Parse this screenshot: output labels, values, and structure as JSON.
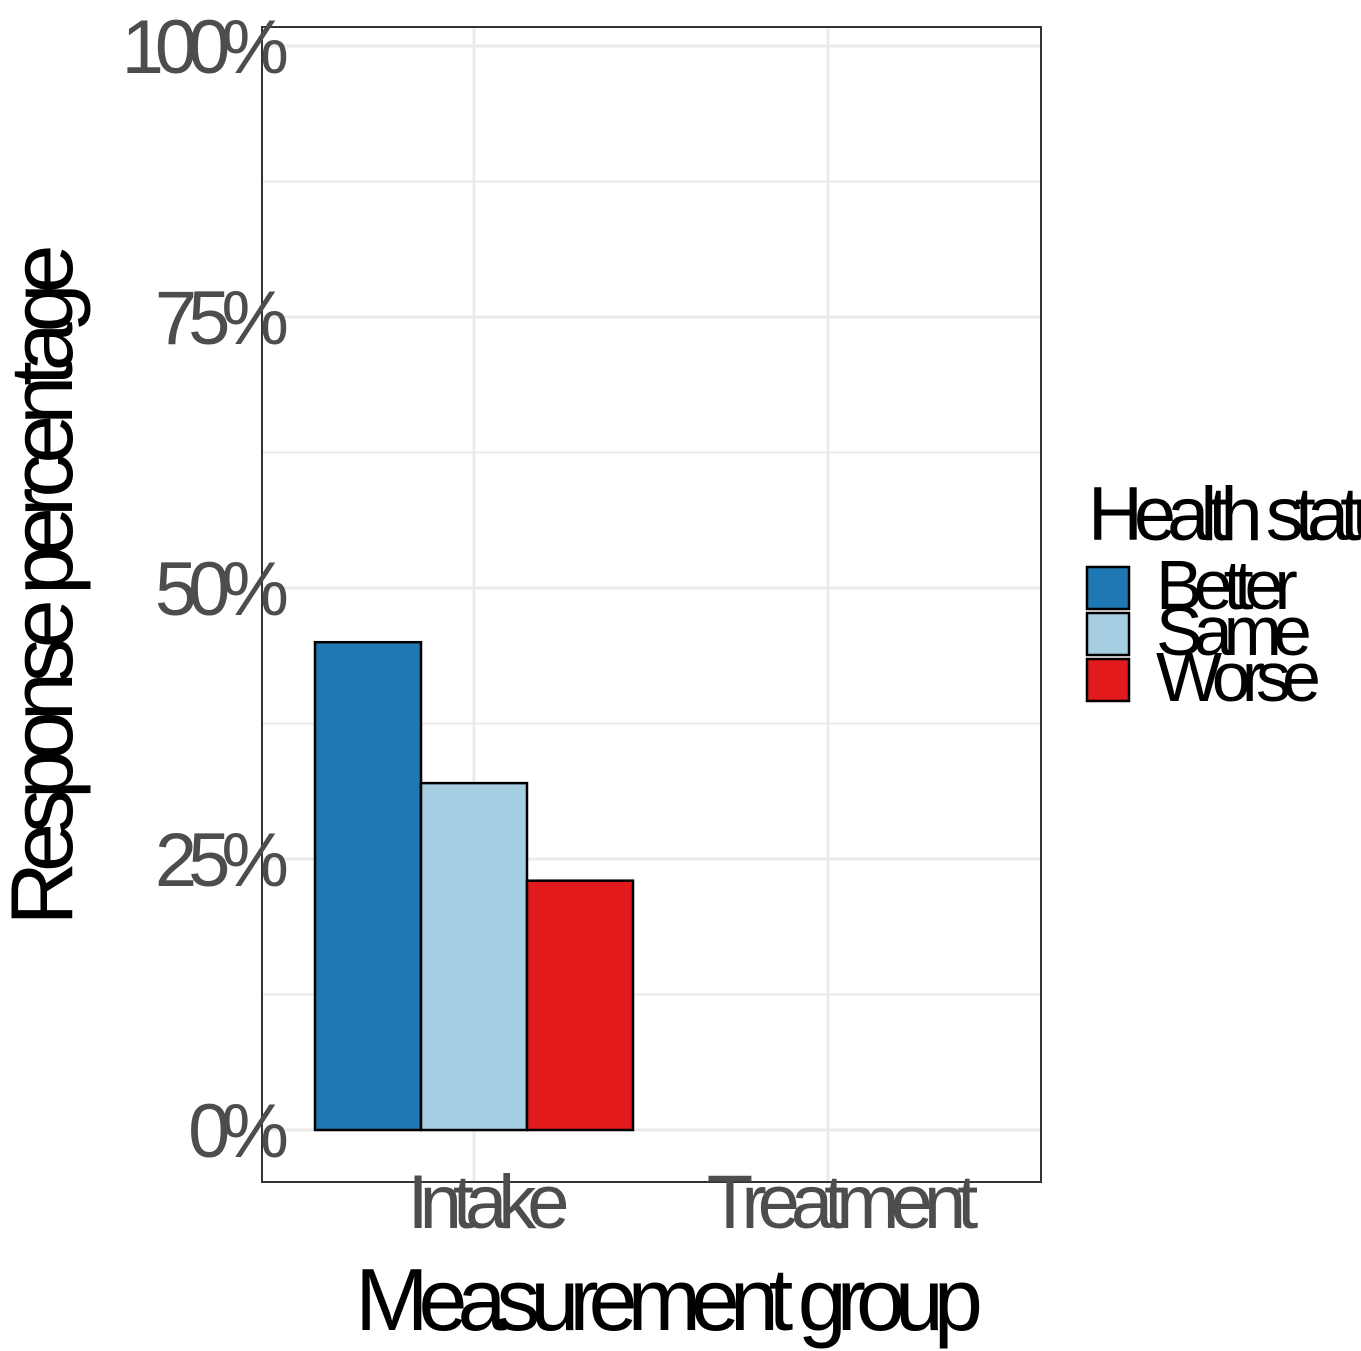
{
  "chart_data": {
    "type": "bar",
    "categories": [
      "Intake",
      "Treatment"
    ],
    "series": [
      {
        "name": "Better",
        "values": [
          0.45,
          null
        ],
        "color": "#1F78B4"
      },
      {
        "name": "Same",
        "values": [
          0.32,
          null
        ],
        "color": "#A6CEE3"
      },
      {
        "name": "Worse",
        "values": [
          0.23,
          null
        ],
        "color": "#E31A1C"
      }
    ],
    "xlabel": "Measurement group",
    "ylabel": "Response percentage",
    "ylim": [
      -0.048,
      1.0
    ],
    "yticks": [
      0,
      0.25,
      0.5,
      0.75,
      1.0
    ],
    "ytick_labels": [
      "0%",
      "25%",
      "50%",
      "75%",
      "100%"
    ],
    "legend": {
      "title": "Health status",
      "position": "right"
    },
    "grid": true
  }
}
